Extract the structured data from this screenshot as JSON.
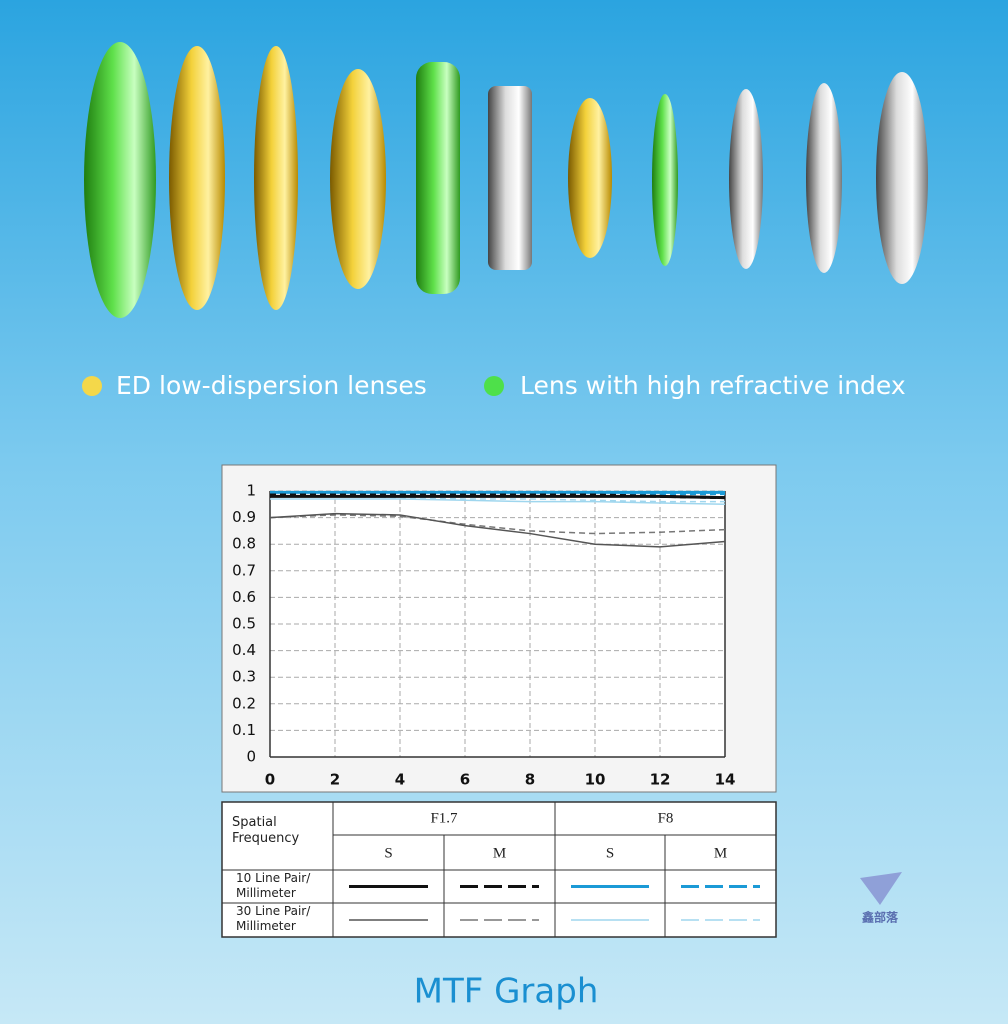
{
  "lens_legend": [
    "ED low-dispersion lenses",
    "Lens with high refractive index"
  ],
  "chart_data": {
    "type": "line",
    "title": "MTF Graph",
    "x": [
      0,
      2,
      4,
      6,
      8,
      10,
      12,
      14
    ],
    "xlim": [
      0,
      14
    ],
    "xticks": [
      0,
      2,
      4,
      6,
      8,
      10,
      12,
      14
    ],
    "ylim": [
      0,
      1
    ],
    "yticks": [
      0,
      0.1,
      0.2,
      0.3,
      0.4,
      0.5,
      0.6,
      0.7,
      0.8,
      0.9,
      1
    ],
    "grid": true,
    "series": [
      {
        "color": "#111111",
        "dash": false,
        "width": 3,
        "values": [
          0.98,
          0.98,
          0.98,
          0.98,
          0.98,
          0.98,
          0.98,
          0.975
        ]
      },
      {
        "color": "#111111",
        "dash": true,
        "width": 3,
        "values": [
          0.985,
          0.985,
          0.985,
          0.985,
          0.985,
          0.985,
          0.98,
          0.975
        ]
      },
      {
        "color": "#1b9ad6",
        "dash": false,
        "width": 3,
        "values": [
          0.995,
          0.995,
          0.995,
          0.995,
          0.995,
          0.995,
          0.995,
          0.995
        ]
      },
      {
        "color": "#1b9ad6",
        "dash": true,
        "width": 3,
        "values": [
          0.99,
          0.99,
          0.99,
          0.99,
          0.99,
          0.99,
          0.99,
          0.99
        ]
      },
      {
        "color": "#555555",
        "dash": false,
        "width": 1.5,
        "values": [
          0.9,
          0.915,
          0.91,
          0.87,
          0.84,
          0.8,
          0.79,
          0.81
        ]
      },
      {
        "color": "#777777",
        "dash": true,
        "width": 1.5,
        "values": [
          0.9,
          0.91,
          0.905,
          0.875,
          0.85,
          0.84,
          0.845,
          0.855
        ]
      },
      {
        "color": "#9fd6ee",
        "dash": false,
        "width": 1.5,
        "values": [
          0.97,
          0.97,
          0.97,
          0.965,
          0.96,
          0.96,
          0.955,
          0.95
        ]
      },
      {
        "color": "#9fd6ee",
        "dash": true,
        "width": 1.5,
        "values": [
          0.98,
          0.98,
          0.975,
          0.97,
          0.97,
          0.965,
          0.96,
          0.96
        ]
      }
    ]
  },
  "table": {
    "header": "Spatial Frequency",
    "apertures": [
      "F1.7",
      "F8"
    ],
    "modes": [
      "S",
      "M",
      "S",
      "M"
    ],
    "rows": [
      "10 Line Pair/ Millimeter",
      "30 Line Pair/ Millimeter"
    ]
  },
  "watermark": "鑫部落"
}
